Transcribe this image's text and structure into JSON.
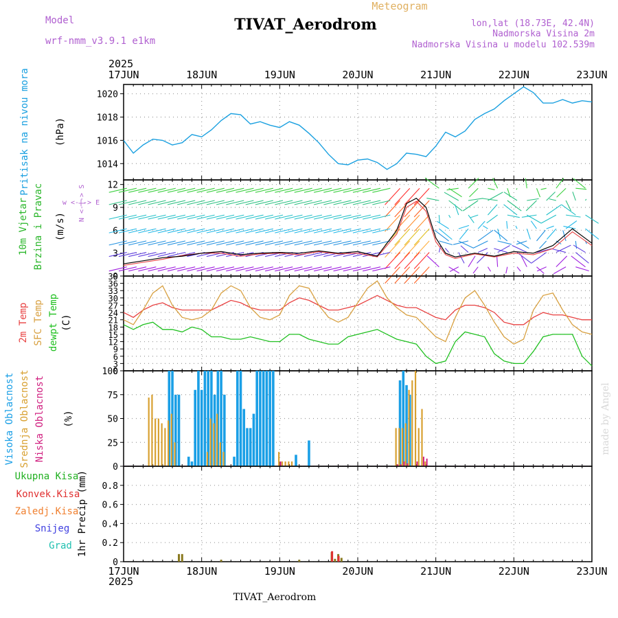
{
  "header": {
    "model_label": "Model",
    "model_name": "wrf-nmm_v3.9.1  e1km",
    "meteogram_label": "Meteogram",
    "station_title": "TIVAT_Aerodrom",
    "lonlat": "lon,lat (18.73E, 42.4N)",
    "altitude": "Nadmorska Visina 2m",
    "model_altitude": "Nadmorska Visina u modelu 102.539m",
    "footer_title": "TIVAT_Aerodrom",
    "credit": "made by Angel"
  },
  "time_axis": {
    "year": "2025",
    "dates": [
      "17JUN",
      "18JUN",
      "19JUN",
      "20JUN",
      "21JUN",
      "22JUN",
      "23JUN"
    ]
  },
  "colors": {
    "pressure": "#1aa0e0",
    "wind_green": "#2ab62a",
    "temp2m": "#e84040",
    "sfc_temp": "#d8a040",
    "dewpt": "#20c020",
    "high_cloud": "#1a9fe6",
    "mid_cloud": "#d8a030",
    "low_cloud": "#d02080",
    "total_precip": "#20b020",
    "conv_precip": "#e03030",
    "frozen_precip": "#f08030",
    "snow": "#4040e0",
    "graupel": "#20c0b0"
  },
  "chart_data": [
    {
      "type": "line",
      "name": "pressure",
      "ylabel_lines": [
        "Pritisak na nivou mora",
        "(hPa)"
      ],
      "ylim": [
        1012.6,
        1020.8
      ],
      "yticks": [
        "1014",
        "1016",
        "1018",
        "1020"
      ],
      "ytick_values": [
        1014,
        1016,
        1018,
        1020
      ],
      "x_hours": [
        0,
        3,
        6,
        9,
        12,
        15,
        18,
        21,
        24,
        27,
        30,
        33,
        36,
        39,
        42,
        45,
        48,
        51,
        54,
        57,
        60,
        63,
        66,
        69,
        72,
        75,
        78,
        81,
        84,
        87,
        90,
        93,
        96,
        99,
        102,
        105,
        108,
        111,
        114,
        117,
        120,
        123,
        126,
        129,
        132,
        135,
        138,
        141,
        144
      ],
      "values": [
        1016.0,
        1014.9,
        1015.6,
        1016.1,
        1016.0,
        1015.6,
        1015.8,
        1016.5,
        1016.3,
        1016.9,
        1017.7,
        1018.3,
        1018.2,
        1017.4,
        1017.6,
        1017.3,
        1017.1,
        1017.6,
        1017.3,
        1016.6,
        1015.8,
        1014.8,
        1014.0,
        1013.9,
        1014.3,
        1014.4,
        1014.1,
        1013.5,
        1014.0,
        1014.9,
        1014.8,
        1014.6,
        1015.5,
        1016.7,
        1016.3,
        1016.8,
        1017.8,
        1018.3,
        1018.7,
        1019.4,
        1020.0,
        1020.6,
        1020.1,
        1019.2,
        1019.2,
        1019.5,
        1019.2,
        1019.4,
        1019.3
      ]
    },
    {
      "type": "line",
      "name": "wind",
      "ylabel_lines": [
        "10m Vjetar",
        "Brzina i Pravac",
        "(m/s)"
      ],
      "compass": "w <-|-> E",
      "compass_vertical": "N <-|-> S",
      "ylim": [
        0,
        12.6
      ],
      "yticks": [
        "0",
        "3",
        "6",
        "9",
        "12"
      ],
      "ytick_values": [
        0,
        3,
        6,
        9,
        12
      ],
      "x_hours": [
        0,
        6,
        12,
        18,
        24,
        30,
        36,
        42,
        48,
        54,
        60,
        66,
        72,
        78,
        84,
        87,
        90,
        93,
        96,
        99,
        102,
        108,
        114,
        120,
        126,
        132,
        138,
        144
      ],
      "speed": [
        1.6,
        2.0,
        2.4,
        2.6,
        3.0,
        3.2,
        2.8,
        3.0,
        3.1,
        3.0,
        3.3,
        3.0,
        3.2,
        2.6,
        6.0,
        9.5,
        10.2,
        9.0,
        5.0,
        3.0,
        2.5,
        3.0,
        2.6,
        3.2,
        3.0,
        4.0,
        6.2,
        4.3
      ],
      "gust": [
        1.4,
        1.8,
        2.2,
        2.7,
        3.0,
        3.0,
        2.6,
        2.9,
        3.0,
        2.8,
        3.2,
        2.9,
        3.0,
        2.5,
        5.5,
        9.0,
        9.8,
        8.5,
        4.5,
        2.8,
        2.3,
        2.9,
        2.5,
        3.0,
        2.8,
        3.6,
        5.8,
        4.0
      ]
    },
    {
      "type": "line",
      "name": "temperature",
      "ylabel_lines": [
        "2m Temp",
        "SFC Temp",
        "dewpt Temp",
        "(C)"
      ],
      "ylim": [
        0,
        39
      ],
      "yticks": [
        "0",
        "3",
        "6",
        "9",
        "12",
        "15",
        "18",
        "21",
        "24",
        "27",
        "30",
        "33",
        "36",
        "39"
      ],
      "ytick_values": [
        0,
        3,
        6,
        9,
        12,
        15,
        18,
        21,
        24,
        27,
        30,
        33,
        36,
        39
      ],
      "x_hours": [
        0,
        3,
        6,
        9,
        12,
        15,
        18,
        21,
        24,
        27,
        30,
        33,
        36,
        39,
        42,
        45,
        48,
        51,
        54,
        57,
        60,
        63,
        66,
        69,
        72,
        75,
        78,
        81,
        84,
        87,
        90,
        93,
        96,
        99,
        102,
        105,
        108,
        111,
        114,
        117,
        120,
        123,
        126,
        129,
        132,
        135,
        138,
        141,
        144
      ],
      "series": [
        {
          "name": "2m Temp",
          "values": [
            24,
            22,
            25,
            27,
            28,
            26,
            25,
            25,
            25,
            25,
            27,
            29,
            28,
            26,
            25,
            25,
            25,
            28,
            30,
            29,
            27,
            25,
            25,
            26,
            27,
            29,
            31,
            29,
            27,
            26,
            26,
            24,
            22,
            21,
            25,
            27,
            27,
            26,
            24,
            20,
            19,
            19,
            22,
            24,
            23,
            23,
            22,
            21,
            21
          ]
        },
        {
          "name": "SFC Temp",
          "values": [
            21,
            19,
            25,
            32,
            35,
            27,
            22,
            21,
            22,
            25,
            32,
            35,
            33,
            26,
            22,
            21,
            23,
            31,
            35,
            34,
            27,
            22,
            20,
            22,
            28,
            34,
            37,
            30,
            26,
            23,
            22,
            18,
            14,
            12,
            22,
            30,
            33,
            27,
            20,
            14,
            11,
            13,
            25,
            31,
            32,
            25,
            19,
            16,
            15
          ]
        },
        {
          "name": "dewpt Temp",
          "values": [
            19,
            17,
            19,
            20,
            17,
            17,
            16,
            18,
            17,
            14,
            14,
            13,
            13,
            14,
            13,
            12,
            12,
            15,
            15,
            13,
            12,
            11,
            11,
            14,
            15,
            16,
            17,
            15,
            13,
            12,
            11,
            6,
            3,
            4,
            12,
            16,
            15,
            14,
            7,
            4,
            3,
            3,
            8,
            14,
            15,
            15,
            15,
            6,
            2
          ]
        }
      ]
    },
    {
      "type": "bar",
      "name": "cloud",
      "ylabel_lines": [
        "Visoka Oblacnost",
        "Srednja Oblacnost",
        "Niska Oblacnost",
        "(%)"
      ],
      "ylim": [
        0,
        100
      ],
      "yticks": [
        "0",
        "25",
        "50",
        "75",
        "100"
      ],
      "ytick_values": [
        0,
        25,
        50,
        75,
        100
      ],
      "series": [
        {
          "name": "Visoka Oblacnost",
          "x_hours": [
            14,
            15,
            16,
            17,
            20,
            21,
            22,
            23,
            24,
            25,
            26,
            27,
            28,
            29,
            30,
            31,
            34,
            35,
            36,
            37,
            38,
            39,
            40,
            41,
            42,
            43,
            44,
            45,
            46,
            53,
            57,
            85,
            86,
            87,
            88
          ],
          "values": [
            100,
            100,
            75,
            75,
            10,
            5,
            80,
            100,
            80,
            100,
            100,
            100,
            75,
            100,
            100,
            75,
            10,
            100,
            100,
            60,
            40,
            40,
            55,
            100,
            100,
            100,
            100,
            100,
            100,
            12,
            27,
            90,
            100,
            85,
            75
          ]
        },
        {
          "name": "Srednja Oblacnost",
          "x_hours": [
            8,
            9,
            10,
            11,
            12,
            13,
            14,
            15,
            16,
            26,
            27,
            28,
            29,
            30,
            31,
            48,
            49,
            50,
            51,
            52,
            84,
            85,
            86,
            87,
            88,
            89,
            90,
            91,
            92,
            93
          ],
          "values": [
            72,
            75,
            50,
            50,
            45,
            40,
            48,
            55,
            25,
            15,
            50,
            45,
            55,
            25,
            15,
            15,
            5,
            5,
            5,
            5,
            40,
            40,
            40,
            45,
            80,
            90,
            100,
            40,
            60,
            5
          ]
        },
        {
          "name": "Niska Oblacnost",
          "x_hours": [
            48,
            84,
            85,
            86,
            87,
            90,
            92,
            93
          ],
          "values": [
            5,
            2,
            2,
            5,
            3,
            5,
            10,
            8
          ]
        }
      ]
    },
    {
      "type": "bar",
      "name": "precipitation",
      "ylabel_lines": [
        "Ukupna Kisa",
        "Konvek.Kisa",
        "Zaledj.Kisa",
        "Snijeg",
        "Grad",
        "1hr Precip (mm)"
      ],
      "ylim": [
        0,
        1.0
      ],
      "yticks": [
        "0",
        "0.2",
        "0.4",
        "0.6",
        "0.8"
      ],
      "ytick_values": [
        0,
        0.2,
        0.4,
        0.6,
        0.8
      ],
      "series": [
        {
          "name": "Ukupna Kisa",
          "x_hours": [
            17,
            18,
            30,
            54,
            64,
            65,
            66,
            67
          ],
          "values": [
            0.08,
            0.08,
            0.02,
            0.02,
            0.1,
            0.03,
            0.08,
            0.04
          ]
        },
        {
          "name": "Konvek.Kisa",
          "x_hours": [
            64,
            66
          ],
          "values": [
            0.11,
            0.06
          ]
        }
      ]
    }
  ]
}
